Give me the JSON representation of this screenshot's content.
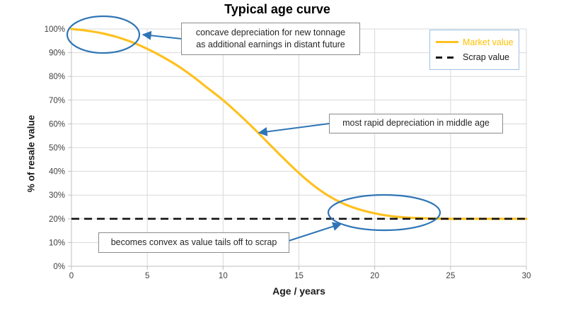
{
  "chart_data": {
    "type": "line",
    "title": "Typical age curve",
    "xlabel": "Age / years",
    "ylabel": "% of resale value",
    "xlim": [
      0,
      30
    ],
    "ylim": [
      0,
      100
    ],
    "grid": true,
    "legend_position": "top-right",
    "x_ticks": [
      0,
      5,
      10,
      15,
      20,
      25,
      30
    ],
    "y_tick_values": [
      0,
      10,
      20,
      30,
      40,
      50,
      60,
      70,
      80,
      90,
      100
    ],
    "y_tick_labels": [
      "0%",
      "10%",
      "20%",
      "30%",
      "40%",
      "50%",
      "60%",
      "70%",
      "80%",
      "90%",
      "100%"
    ],
    "series": [
      {
        "name": "Market value",
        "type": "line",
        "color": "#ffc120",
        "x": [
          0,
          1,
          2,
          3,
          4,
          5,
          6,
          7,
          8,
          9,
          10,
          11,
          12,
          13,
          14,
          15,
          16,
          17,
          18,
          19,
          20,
          21,
          22,
          23,
          24,
          25,
          26,
          27,
          28,
          29,
          30
        ],
        "y": [
          100,
          99.3,
          98.2,
          96.6,
          94.4,
          91.6,
          88.3,
          84.5,
          80,
          75,
          70,
          64.3,
          58.2,
          51.8,
          45.4,
          39.3,
          33.9,
          29.5,
          26.2,
          23.9,
          22.3,
          21.2,
          20.6,
          20.3,
          20.1,
          20,
          20,
          20,
          20,
          20,
          20
        ]
      },
      {
        "name": "Scrap value",
        "type": "hline",
        "color": "#111111",
        "dash": true,
        "value": 20
      }
    ],
    "annotations": [
      {
        "text": "concave depreciation for new tonnage\nas additional earnings in distant future"
      },
      {
        "text": "most rapid depreciation in middle age"
      },
      {
        "text": "becomes convex as value tails off to scrap"
      }
    ],
    "annotation_color": "#2e75b6",
    "gridline_color": "#d9d9d9",
    "axis_color": "#bfbfbf",
    "tick_label_color": "#404040"
  }
}
